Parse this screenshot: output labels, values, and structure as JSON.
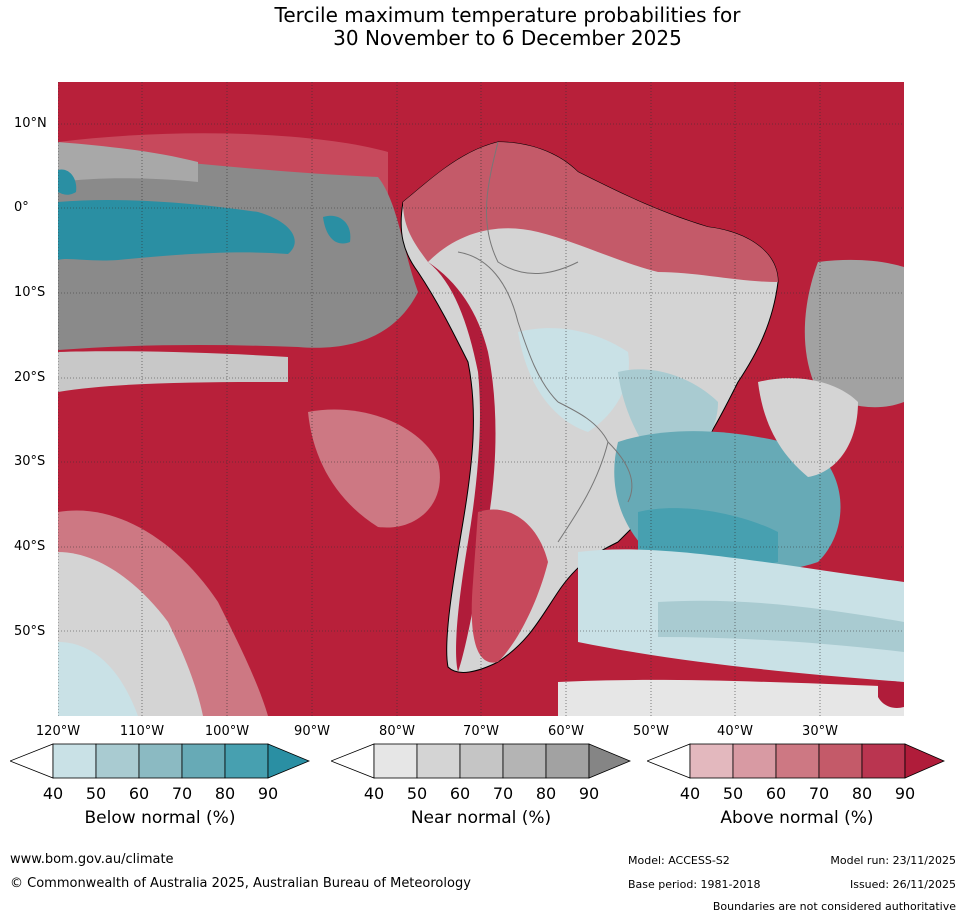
{
  "title": {
    "line1": "Tercile maximum temperature probabilities for",
    "line2": "30 November to 6 December 2025"
  },
  "latitude_labels": [
    "10°N",
    "0°",
    "10°S",
    "20°S",
    "30°S",
    "40°S",
    "50°S"
  ],
  "longitude_labels": [
    "120°W",
    "110°W",
    "100°W",
    "90°W",
    "80°W",
    "70°W",
    "60°W",
    "50°W",
    "40°W",
    "30°W"
  ],
  "legends": [
    {
      "label": "Below normal (%)",
      "ticks": [
        "40",
        "50",
        "60",
        "70",
        "80",
        "90"
      ],
      "colors": [
        "#ffffff",
        "#c9e1e6",
        "#a9cbd1",
        "#8bbac2",
        "#67aab6",
        "#47a0b0",
        "#2a8fa3"
      ]
    },
    {
      "label": "Near normal (%)",
      "ticks": [
        "40",
        "50",
        "60",
        "70",
        "80",
        "90"
      ],
      "colors": [
        "#ffffff",
        "#e6e6e6",
        "#d4d4d4",
        "#c5c5c5",
        "#b4b4b4",
        "#a2a2a2",
        "#858585"
      ]
    },
    {
      "label": "Above normal (%)",
      "ticks": [
        "40",
        "50",
        "60",
        "70",
        "80",
        "90"
      ],
      "colors": [
        "#ffffff",
        "#e3b8be",
        "#d89aa3",
        "#cd7883",
        "#c45a69",
        "#ba3550",
        "#b01c3a"
      ]
    }
  ],
  "footer": {
    "website": "www.bom.gov.au/climate",
    "copyright": "© Commonwealth of Australia 2025, Australian Bureau of Meteorology",
    "model": "Model: ACCESS-S2",
    "model_run": "Model run: 23/11/2025",
    "base_period": "Base period: 1981-2018",
    "issued": "Issued: 26/11/2025",
    "disclaimer": "Boundaries are not considered authoritative"
  }
}
